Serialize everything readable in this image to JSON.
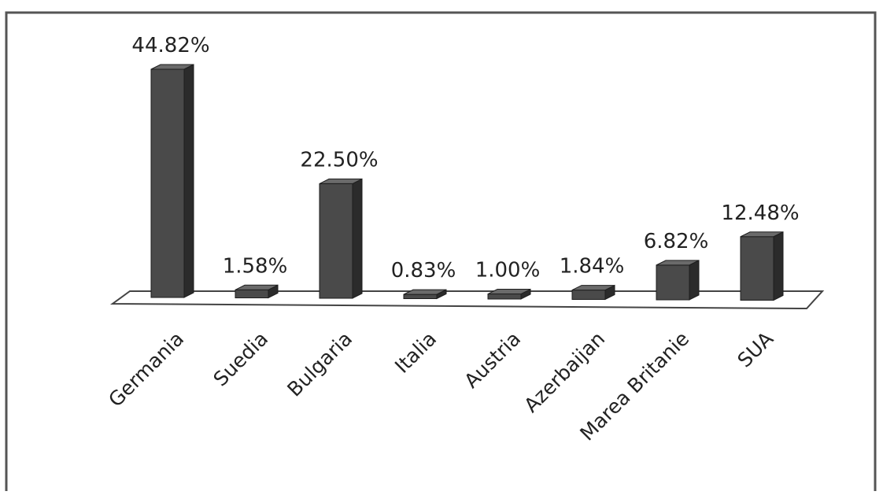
{
  "chart_data": {
    "type": "bar",
    "categories": [
      "Germania",
      "Suedia",
      "Bulgaria",
      "Italia",
      "Austria",
      "Azerbaijan",
      "Marea Britanie",
      "SUA"
    ],
    "values": [
      44.82,
      1.58,
      22.5,
      0.83,
      1.0,
      1.84,
      6.82,
      12.48
    ],
    "data_labels": [
      "44.82%",
      "1.58%",
      "22.50%",
      "0.83%",
      "1.00%",
      "1.84%",
      "6.82%",
      "12.48%"
    ],
    "title": "",
    "xlabel": "",
    "ylabel": "",
    "ylim": [
      0,
      50
    ],
    "grid": false,
    "legend": "none",
    "style": "3d-column",
    "colors": {
      "bar_front": "#4a4a4a",
      "bar_side": "#2b2b2b",
      "bar_top": "#6a6a6a",
      "floor": "#ffffff",
      "border": "#555555"
    }
  }
}
